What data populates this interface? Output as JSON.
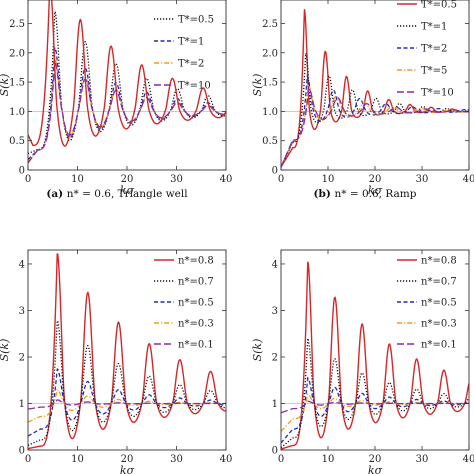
{
  "chart_data": [
    {
      "type": "line",
      "panel": "a",
      "caption_tag": "(a)",
      "caption": "n* = 0.6, Triangle well",
      "xlabel": "kσ",
      "ylabel": "S(k)",
      "xlim": [
        0,
        40
      ],
      "ylim": [
        0,
        2.9
      ],
      "xticks": [
        0,
        10,
        20,
        30,
        40
      ],
      "yticks": [
        0,
        0.5,
        1.0,
        1.5,
        2.0,
        2.5
      ],
      "ytick_labels": [
        "0",
        "0.5",
        "1.0",
        "1.5",
        "2.0",
        "2.5"
      ],
      "legend_position": "top-right",
      "series": [
        {
          "name": "T*=0.5",
          "color": "#111111",
          "dash": "dot",
          "first_peak": 2.72,
          "first_min": 0.4,
          "s0": 0.28,
          "period": 6.2,
          "decay": 0.06,
          "k_onset": 2.0,
          "in_legend": true
        },
        {
          "name": "T*=1",
          "color": "#1f2fb5",
          "dash": "dash",
          "first_peak": 2.1,
          "first_min": 0.45,
          "s0": 0.18,
          "period": 6.2,
          "decay": 0.065,
          "k_onset": 2.0,
          "in_legend": true
        },
        {
          "name": "T*=2",
          "color": "#f39c12",
          "dash": "dashdot",
          "first_peak": 1.9,
          "first_min": 0.48,
          "s0": 0.14,
          "period": 6.2,
          "decay": 0.07,
          "k_onset": 2.0,
          "in_legend": true
        },
        {
          "name": "T*=10",
          "color": "#8e2aa6",
          "dash": "longdash",
          "first_peak": 1.85,
          "first_min": 0.5,
          "s0": 0.12,
          "period": 6.2,
          "decay": 0.07,
          "k_onset": 2.0,
          "in_legend": true
        },
        {
          "name": "",
          "color": "#d62728",
          "dash": "solid",
          "first_peak": 3.2,
          "first_min": 0.3,
          "s0": 0.6,
          "period": 6.2,
          "decay": 0.055,
          "k_onset": 1.0,
          "in_legend": false
        }
      ]
    },
    {
      "type": "line",
      "panel": "b",
      "caption_tag": "(b)",
      "caption": "n* = 0.6, Ramp",
      "xlabel": "kσ",
      "ylabel": "S(k)",
      "xlim": [
        0,
        40
      ],
      "ylim": [
        0,
        2.9
      ],
      "xticks": [
        0,
        10,
        20,
        30,
        40
      ],
      "yticks": [
        0,
        0.5,
        1.0,
        1.5,
        2.0,
        2.5
      ],
      "ytick_labels": [
        "0",
        "0.5",
        "1.0",
        "1.5",
        "2.0",
        "2.5"
      ],
      "legend_position": "top-right",
      "series": [
        {
          "name": "T*=0.5",
          "color": "#d62728",
          "dash": "solid",
          "first_peak": 2.75,
          "first_min": 0.6,
          "s0": 0.05,
          "period": 4.5,
          "decay": 0.12,
          "k_onset": 2.5,
          "in_legend": true
        },
        {
          "name": "T*=1",
          "color": "#111111",
          "dash": "dot",
          "first_peak": 2.0,
          "first_min": 0.75,
          "s0": 0.05,
          "period": 5.0,
          "decay": 0.1,
          "k_onset": 2.5,
          "in_legend": true
        },
        {
          "name": "T*=2",
          "color": "#1f2fb5",
          "dash": "dash",
          "first_peak": 1.6,
          "first_min": 0.78,
          "s0": 0.05,
          "period": 5.6,
          "decay": 0.09,
          "k_onset": 2.5,
          "in_legend": true
        },
        {
          "name": "T*=5",
          "color": "#f39c12",
          "dash": "dashdot",
          "first_peak": 1.45,
          "first_min": 0.8,
          "s0": 0.05,
          "period": 6.0,
          "decay": 0.09,
          "k_onset": 2.5,
          "in_legend": true
        },
        {
          "name": "T*=10",
          "color": "#8e2aa6",
          "dash": "longdash",
          "first_peak": 1.4,
          "first_min": 0.82,
          "s0": 0.05,
          "period": 6.2,
          "decay": 0.09,
          "k_onset": 2.5,
          "in_legend": true
        }
      ]
    },
    {
      "type": "line",
      "panel": "c",
      "caption_tag": "",
      "caption": "",
      "xlabel": "kσ",
      "ylabel": "S(k)",
      "xlim": [
        0,
        40
      ],
      "ylim": [
        0,
        4.3
      ],
      "xticks": [
        0,
        10,
        20,
        30,
        40
      ],
      "yticks": [
        0,
        1,
        2,
        3,
        4
      ],
      "ytick_labels": [
        "0",
        "1",
        "2",
        "3",
        "4"
      ],
      "legend_position": "top-right",
      "series": [
        {
          "name": "n*=0.8",
          "color": "#d62728",
          "dash": "solid",
          "first_peak": 4.25,
          "first_min": 0.12,
          "s0": 0.03,
          "period": 6.2,
          "decay": 0.05,
          "k_onset": 2.5,
          "in_legend": true
        },
        {
          "name": "n*=0.7",
          "color": "#111111",
          "dash": "dot",
          "first_peak": 2.8,
          "first_min": 0.3,
          "s0": 0.1,
          "period": 6.2,
          "decay": 0.06,
          "k_onset": 2.5,
          "in_legend": true
        },
        {
          "name": "n*=0.5",
          "color": "#1f2fb5",
          "dash": "dash",
          "first_peak": 1.75,
          "first_min": 0.55,
          "s0": 0.3,
          "period": 6.2,
          "decay": 0.075,
          "k_onset": 2.5,
          "in_legend": true
        },
        {
          "name": "n*=0.3",
          "color": "#f39c12",
          "dash": "dashdot",
          "first_peak": 1.3,
          "first_min": 0.8,
          "s0": 0.6,
          "period": 6.2,
          "decay": 0.1,
          "k_onset": 2.5,
          "in_legend": true
        },
        {
          "name": "n*=0.1",
          "color": "#8e2aa6",
          "dash": "longdash",
          "first_peak": 1.08,
          "first_min": 0.95,
          "s0": 0.88,
          "period": 6.2,
          "decay": 0.14,
          "k_onset": 2.5,
          "in_legend": true
        }
      ]
    },
    {
      "type": "line",
      "panel": "d",
      "caption_tag": "",
      "caption": "",
      "xlabel": "kσ",
      "ylabel": "S(k)",
      "xlim": [
        0,
        40
      ],
      "ylim": [
        0,
        4.3
      ],
      "xticks": [
        0,
        10,
        20,
        30,
        40
      ],
      "yticks": [
        0,
        1,
        2,
        3,
        4
      ],
      "ytick_labels": [
        "0",
        "1",
        "2",
        "3",
        "4"
      ],
      "legend_position": "top-right",
      "series": [
        {
          "name": "n*=0.8",
          "color": "#d62728",
          "dash": "solid",
          "first_peak": 4.05,
          "first_min": 0.15,
          "s0": 0.02,
          "period": 5.8,
          "decay": 0.05,
          "k_onset": 2.5,
          "in_legend": true
        },
        {
          "name": "n*=0.7",
          "color": "#111111",
          "dash": "dot",
          "first_peak": 2.4,
          "first_min": 0.4,
          "s0": 0.05,
          "period": 5.8,
          "decay": 0.065,
          "k_onset": 2.5,
          "in_legend": true
        },
        {
          "name": "n*=0.5",
          "color": "#1f2fb5",
          "dash": "dash",
          "first_peak": 1.55,
          "first_min": 0.65,
          "s0": 0.15,
          "period": 5.8,
          "decay": 0.08,
          "k_onset": 2.5,
          "in_legend": true
        },
        {
          "name": "n*=0.3",
          "color": "#f39c12",
          "dash": "dashdot",
          "first_peak": 1.2,
          "first_min": 0.85,
          "s0": 0.4,
          "period": 5.8,
          "decay": 0.1,
          "k_onset": 2.5,
          "in_legend": true
        },
        {
          "name": "n*=0.1",
          "color": "#8e2aa6",
          "dash": "longdash",
          "first_peak": 1.05,
          "first_min": 0.95,
          "s0": 0.8,
          "period": 5.8,
          "decay": 0.14,
          "k_onset": 2.5,
          "in_legend": true
        }
      ]
    }
  ]
}
